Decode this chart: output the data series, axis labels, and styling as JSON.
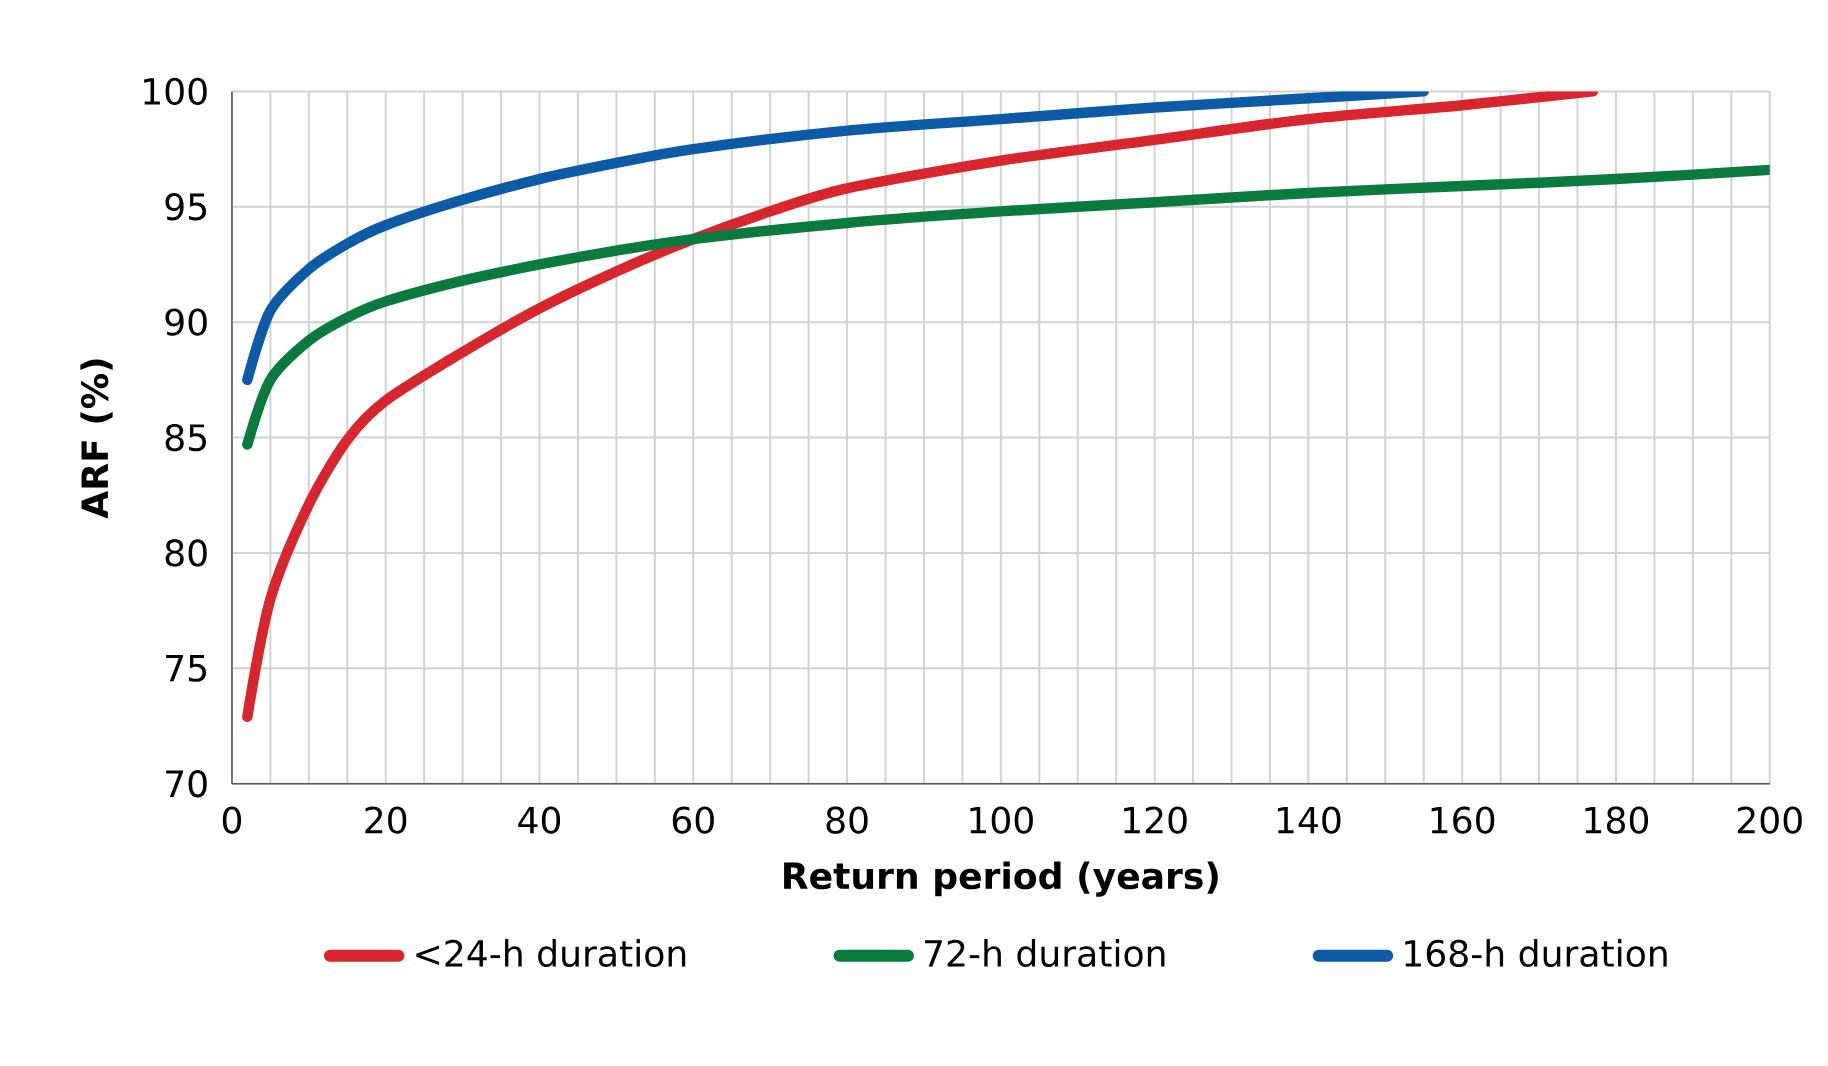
{
  "chart_data": {
    "type": "line",
    "xlabel": "Return period (years)",
    "ylabel": "ARF (%)",
    "xlim": [
      0,
      200
    ],
    "ylim": [
      70,
      100
    ],
    "xticks": [
      0,
      {
        "value": 5,
        "label": null
      },
      {
        "value": 10,
        "label": null
      },
      {
        "value": 15,
        "label": null
      },
      20,
      {
        "value": 25,
        "label": null
      },
      {
        "value": 30,
        "label": null
      },
      {
        "value": 35,
        "label": null
      },
      40,
      {
        "value": 45,
        "label": null
      },
      {
        "value": 50,
        "label": null
      },
      {
        "value": 55,
        "label": null
      },
      60,
      {
        "value": 65,
        "label": null
      },
      {
        "value": 70,
        "label": null
      },
      {
        "value": 75,
        "label": null
      },
      80,
      {
        "value": 85,
        "label": null
      },
      {
        "value": 90,
        "label": null
      },
      {
        "value": 95,
        "label": null
      },
      100,
      {
        "value": 105,
        "label": null
      },
      {
        "value": 110,
        "label": null
      },
      {
        "value": 115,
        "label": null
      },
      120,
      {
        "value": 125,
        "label": null
      },
      {
        "value": 130,
        "label": null
      },
      {
        "value": 135,
        "label": null
      },
      140,
      {
        "value": 145,
        "label": null
      },
      {
        "value": 150,
        "label": null
      },
      {
        "value": 155,
        "label": null
      },
      160,
      {
        "value": 165,
        "label": null
      },
      {
        "value": 170,
        "label": null
      },
      {
        "value": 175,
        "label": null
      },
      180,
      {
        "value": 185,
        "label": null
      },
      {
        "value": 190,
        "label": null
      },
      {
        "value": 195,
        "label": null
      },
      200
    ],
    "yticks": [
      70,
      75,
      80,
      85,
      90,
      95,
      100
    ],
    "grid": true,
    "legend": "bottom",
    "marker": "none",
    "line_style": "solid",
    "series": [
      {
        "name": "<24-h duration",
        "color": "#d7262e",
        "x": [
          2,
          5,
          10,
          15,
          20,
          30,
          40,
          50,
          60,
          70,
          80,
          100,
          120,
          140,
          160,
          177
        ],
        "values": [
          72.9,
          78.0,
          82.1,
          84.9,
          86.6,
          88.7,
          90.6,
          92.2,
          93.6,
          94.8,
          95.8,
          97.0,
          97.9,
          98.8,
          99.4,
          100
        ]
      },
      {
        "name": "72-h duration",
        "color": "#0b7a3e",
        "x": [
          2,
          5,
          10,
          15,
          20,
          30,
          40,
          50,
          60,
          80,
          100,
          120,
          140,
          160,
          180,
          200
        ],
        "values": [
          84.7,
          87.5,
          89.2,
          90.2,
          90.9,
          91.8,
          92.5,
          93.1,
          93.6,
          94.3,
          94.8,
          95.2,
          95.6,
          95.9,
          96.2,
          96.6
        ]
      },
      {
        "name": "168-h duration",
        "color": "#0d5aa7",
        "x": [
          2,
          5,
          10,
          15,
          20,
          30,
          40,
          50,
          60,
          80,
          100,
          120,
          140,
          155
        ],
        "values": [
          87.5,
          90.5,
          92.3,
          93.4,
          94.2,
          95.3,
          96.2,
          96.9,
          97.5,
          98.3,
          98.8,
          99.3,
          99.7,
          100
        ]
      }
    ]
  }
}
